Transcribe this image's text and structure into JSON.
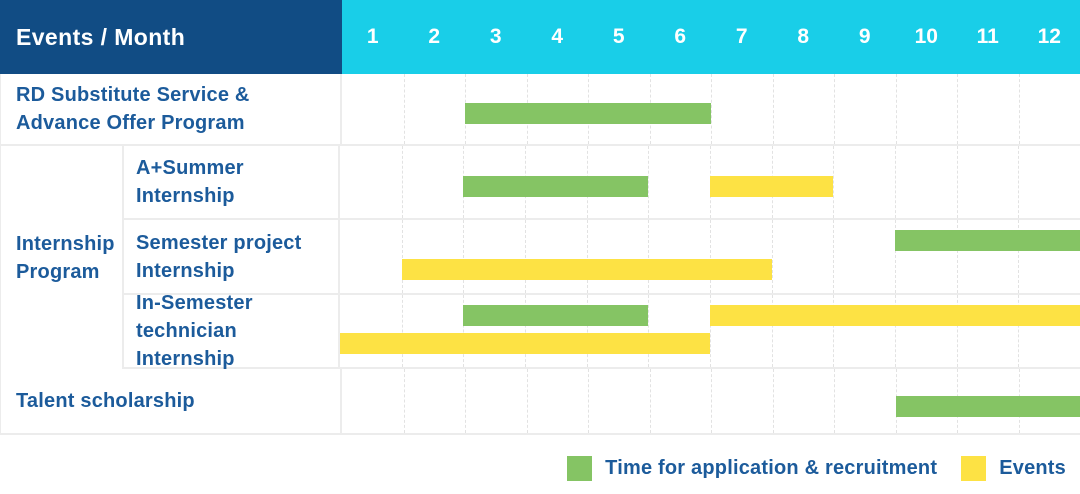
{
  "header": {
    "label": "Events / Month"
  },
  "colors": {
    "navy": "#114C84",
    "cyan": "#19CEE8",
    "green": "#85C464",
    "yellow": "#FDE244",
    "label_text": "#1C5B9B",
    "header_text": "#FFFFFF"
  },
  "chart_data": {
    "type": "gantt",
    "title": "Events / Month",
    "months": [
      "1",
      "2",
      "3",
      "4",
      "5",
      "6",
      "7",
      "8",
      "9",
      "10",
      "11",
      "12"
    ],
    "x_range": [
      1,
      12
    ],
    "grid": "dashed-vertical-month-lines",
    "legend_position": "bottom-right",
    "bar_types": {
      "recruitment": {
        "legend": "Time for application & recruitment",
        "color": "#85C464"
      },
      "event": {
        "legend": "Events",
        "color": "#FDE244"
      }
    },
    "group": {
      "label": "Internship\nProgram",
      "row_indices": [
        1,
        2,
        3
      ]
    },
    "rows": [
      {
        "label": "RD Substitute Service &\nAdvance Offer Program",
        "group": null,
        "bars": [
          {
            "type": "recruitment",
            "start_month": 3,
            "end_month": 6,
            "line": "center"
          }
        ]
      },
      {
        "label": "A+Summer\nInternship",
        "group": "Internship Program",
        "bars": [
          {
            "type": "recruitment",
            "start_month": 3,
            "end_month": 5,
            "line": "center"
          },
          {
            "type": "event",
            "start_month": 7,
            "end_month": 8,
            "line": "center"
          }
        ]
      },
      {
        "label": "Semester project\nInternship",
        "group": "Internship Program",
        "bars": [
          {
            "type": "recruitment",
            "start_month": 10,
            "end_month": 12,
            "line": "top"
          },
          {
            "type": "event",
            "start_month": 2,
            "end_month": 7,
            "line": "bottom"
          }
        ]
      },
      {
        "label": "In-Semester\ntechnician Internship",
        "group": "Internship Program",
        "bars": [
          {
            "type": "recruitment",
            "start_month": 3,
            "end_month": 5,
            "line": "top"
          },
          {
            "type": "event",
            "start_month": 7,
            "end_month": 12,
            "line": "top"
          },
          {
            "type": "event",
            "start_month": 1,
            "end_month": 6,
            "line": "bottom"
          }
        ]
      },
      {
        "label": "Talent scholarship",
        "group": null,
        "bars": [
          {
            "type": "recruitment",
            "start_month": 10,
            "end_month": 12,
            "line": "center"
          }
        ]
      }
    ]
  },
  "legend": {
    "items": [
      {
        "label": "Time for application & recruitment",
        "type": "recruitment"
      },
      {
        "label": "Events",
        "type": "event"
      }
    ]
  }
}
